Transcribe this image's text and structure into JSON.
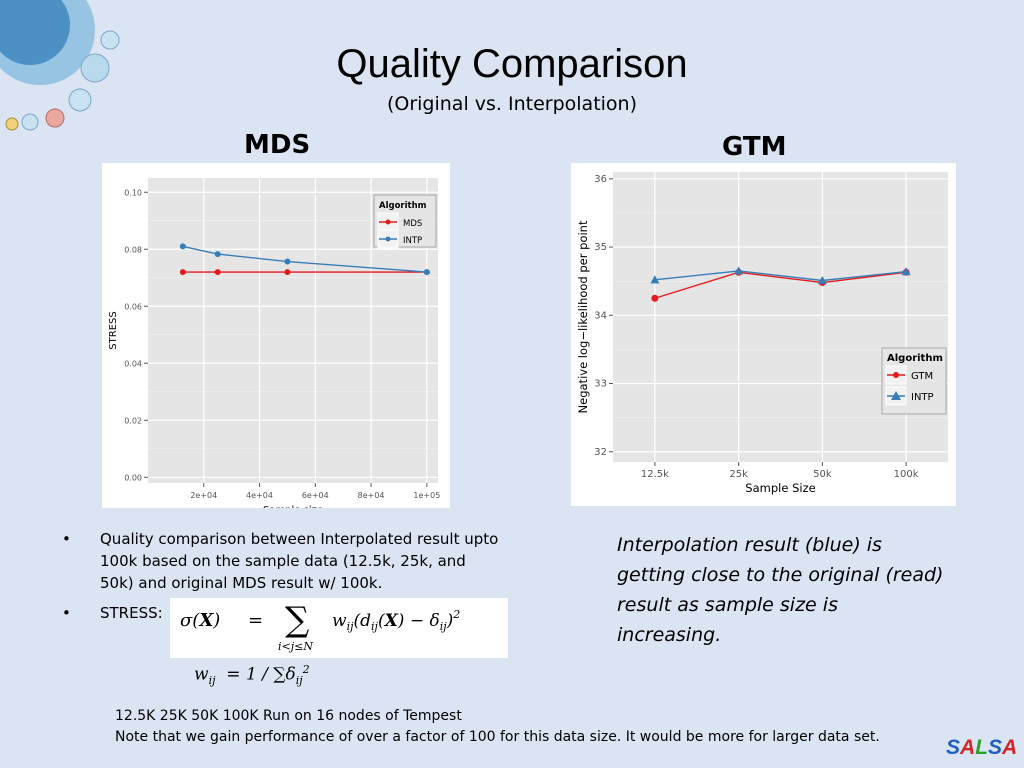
{
  "slide": {
    "title": "Quality Comparison",
    "subtitle": "(Original vs. Interpolation)",
    "mds_heading": "MDS",
    "gtm_heading": "GTM",
    "bullets": [
      "Quality comparison between Interpolated result upto 100k based on the sample data (12.5k, 25k, and 50k) and original MDS result w/ 100k.",
      "STRESS:"
    ],
    "stress_formula": "σ(X) = ∑ w_ij (d_ij(X) − δ_ij)^2, i<j≤N",
    "weight_formula": "w_ij = 1 / ∑δ_ij^2",
    "note": "Interpolation result (blue) is getting close to the original (read) result as sample size is increasing.",
    "footnote_line1": "12.5K 25K 50K 100K Run on 16 nodes of Tempest",
    "footnote_line2": "Note that we gain performance of over a factor of 100 for this data size. It would be more for larger data set.",
    "logo_letters": [
      "S",
      "A",
      "L",
      "S",
      "A"
    ],
    "logo_colors": [
      "#1f5fbf",
      "#d62728",
      "#2ca02c",
      "#1f5fbf",
      "#d62728"
    ]
  },
  "chart_data": [
    {
      "type": "line",
      "id": "mds",
      "xlabel": "Sample size",
      "ylabel": "STRESS",
      "xlim": [
        0,
        104000
      ],
      "ylim": [
        -0.002,
        0.105
      ],
      "xticks": [
        20000,
        40000,
        60000,
        80000,
        100000
      ],
      "xtick_labels": [
        "2e+04",
        "4e+04",
        "6e+04",
        "8e+04",
        "1e+05"
      ],
      "yticks": [
        0.0,
        0.02,
        0.04,
        0.06,
        0.08,
        0.1
      ],
      "ytick_labels": [
        "0.00",
        "0.02",
        "0.04",
        "0.06",
        "0.08",
        "0.10"
      ],
      "legend_title": "Algorithm",
      "legend_position": "top-right",
      "grid": true,
      "series": [
        {
          "name": "MDS",
          "color": "#e41a1c",
          "marker": "circle",
          "x": [
            12500,
            25000,
            50000,
            100000
          ],
          "y": [
            0.072,
            0.072,
            0.072,
            0.072
          ]
        },
        {
          "name": "INTP",
          "color": "#377eb8",
          "marker": "circle",
          "x": [
            12500,
            25000,
            50000,
            100000
          ],
          "y": [
            0.081,
            0.0783,
            0.0757,
            0.072
          ]
        }
      ]
    },
    {
      "type": "line",
      "id": "gtm",
      "xlabel": "Sample Size",
      "ylabel": "Negative log−likelihood per point",
      "categories": [
        "12.5k",
        "25k",
        "50k",
        "100k"
      ],
      "ylim": [
        31.85,
        36.1
      ],
      "yticks": [
        32,
        33,
        34,
        35,
        36
      ],
      "ytick_labels": [
        "32",
        "33",
        "34",
        "35",
        "36"
      ],
      "legend_title": "Algorithm",
      "legend_position": "bottom-right",
      "grid": true,
      "series": [
        {
          "name": "GTM",
          "color": "#e41a1c",
          "marker": "circle",
          "values": [
            34.25,
            34.63,
            34.48,
            34.63
          ]
        },
        {
          "name": "INTP",
          "color": "#377eb8",
          "marker": "triangle",
          "values": [
            34.52,
            34.65,
            34.51,
            34.64
          ]
        }
      ]
    }
  ]
}
